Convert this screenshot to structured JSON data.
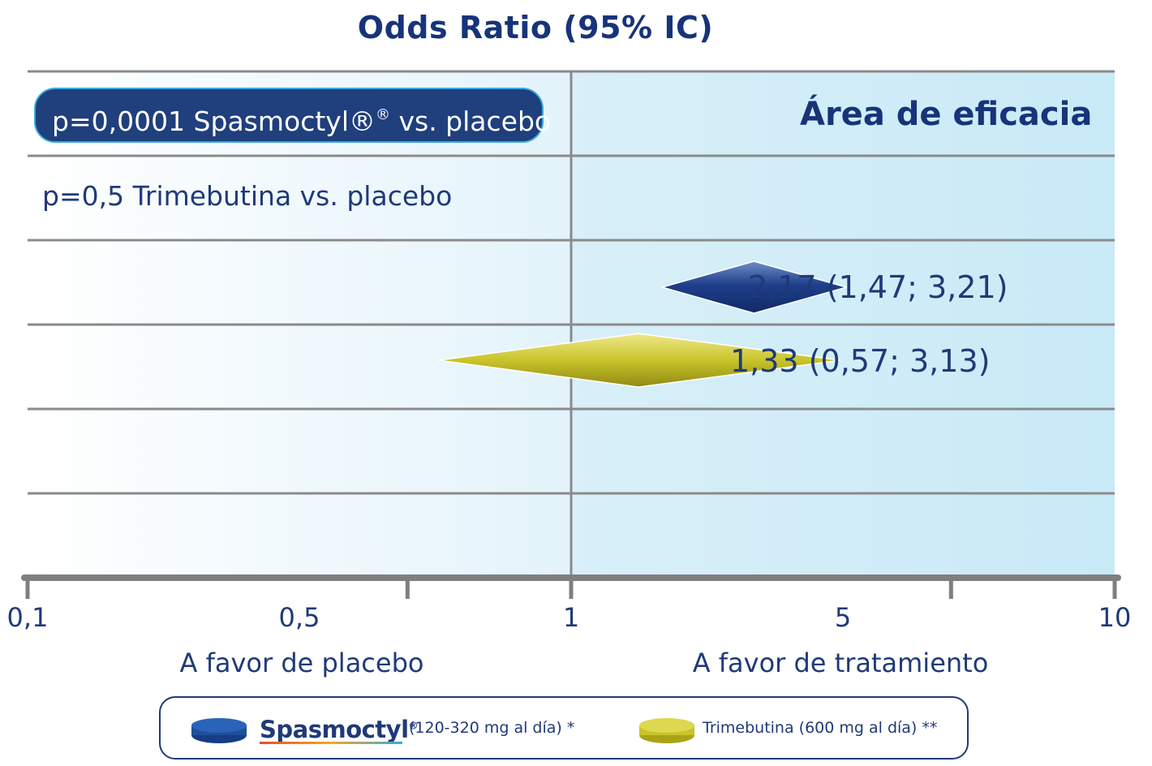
{
  "chart_data": {
    "type": "forest",
    "title": "Odds Ratio (95% IC)",
    "x_scale": "log",
    "xlim": [
      0.1,
      10
    ],
    "x_ticks": [
      "0,1",
      "0,5",
      "1",
      "5",
      "10"
    ],
    "x_tick_values": [
      0.1,
      0.5,
      1,
      5,
      10
    ],
    "direction_labels": {
      "left": "A favor de placebo",
      "right": "A favor de tratamiento"
    },
    "area_label": "Área de eficacia",
    "rows": [
      {
        "label": "p=0,0001 Spasmoctyl®",
        "label_sup": "®",
        "label_suffix": " vs. placebo",
        "or": 2.17,
        "ci_low": 1.47,
        "ci_high": 3.21,
        "value_label": "2,17 (1,47; 3,21)",
        "color": "#1f3f7d"
      },
      {
        "label": "p=0,5 Trimebutina vs. placebo",
        "or": 1.33,
        "ci_low": 0.57,
        "ci_high": 3.13,
        "value_label": "1,33 (0,57; 3,13)",
        "color": "#c9c42a"
      }
    ],
    "legend": [
      {
        "brand": "Spasmoctyl",
        "brand_sup": "®",
        "text": "(120-320 mg al día) *",
        "color": "#1f4f9a"
      },
      {
        "text": "Trimebutina (600 mg al día) **",
        "color": "#c9c42a"
      }
    ],
    "grid": true
  }
}
